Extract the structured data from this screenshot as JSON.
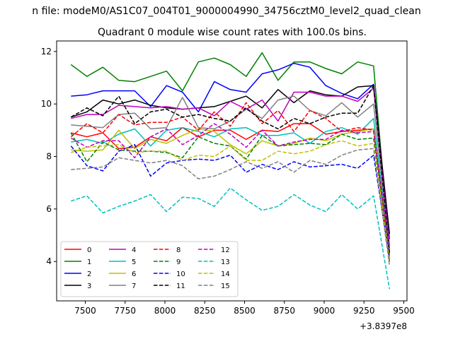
{
  "chart_data": {
    "type": "line",
    "suptitle": "n file: modeM0/AS1C07_004T01_9000004990_34756cztM0_level2_quad_clean",
    "title": "Quadrant 0 module wise count rates with 100.0s bins.",
    "xlabel": "",
    "ylabel": "",
    "x_offset_label": "+3.8397e8",
    "xlim": [
      7320,
      9520
    ],
    "ylim": [
      2.5,
      12.4
    ],
    "xticks": [
      7500,
      7750,
      8000,
      8250,
      8500,
      8750,
      9000,
      9250,
      9500
    ],
    "yticks": [
      4,
      6,
      8,
      10,
      12
    ],
    "grid": false,
    "legend": {
      "placement": "lower-left",
      "ncol": 4
    },
    "x": [
      7410,
      7510,
      7610,
      7710,
      7810,
      7910,
      8010,
      8110,
      8210,
      8310,
      8410,
      8510,
      8610,
      8710,
      8810,
      8910,
      9010,
      9110,
      9210,
      9310,
      9410
    ],
    "series": [
      {
        "name": "0",
        "color": "#ff0000",
        "style": "solid",
        "values": [
          8.9,
          8.75,
          8.9,
          8.3,
          8.35,
          8.75,
          8.6,
          9.1,
          8.75,
          9.0,
          9.0,
          8.65,
          9.0,
          8.95,
          9.25,
          9.25,
          8.85,
          8.95,
          9.0,
          9.05,
          4.2
        ]
      },
      {
        "name": "1",
        "color": "#008000",
        "style": "solid",
        "values": [
          11.5,
          11.05,
          11.4,
          10.9,
          10.85,
          11.05,
          11.25,
          10.5,
          11.6,
          11.75,
          11.5,
          11.05,
          11.95,
          10.9,
          11.6,
          11.6,
          11.35,
          11.15,
          11.6,
          11.45,
          4.35
        ]
      },
      {
        "name": "2",
        "color": "#0000ff",
        "style": "solid",
        "values": [
          10.3,
          10.35,
          10.5,
          10.5,
          10.5,
          9.9,
          10.7,
          10.45,
          9.7,
          10.85,
          10.55,
          10.45,
          11.15,
          11.3,
          11.55,
          11.4,
          10.7,
          10.4,
          10.2,
          10.75,
          4.85
        ]
      },
      {
        "name": "3",
        "color": "#000000",
        "style": "solid",
        "values": [
          9.5,
          9.7,
          10.15,
          10.0,
          10.15,
          9.95,
          9.85,
          9.8,
          9.85,
          9.9,
          10.1,
          10.3,
          9.85,
          10.55,
          10.05,
          10.5,
          10.35,
          10.3,
          10.65,
          10.7,
          5.05
        ]
      },
      {
        "name": "4",
        "color": "#bf00bf",
        "style": "solid",
        "values": [
          9.45,
          9.6,
          9.6,
          9.95,
          9.9,
          9.85,
          9.9,
          9.8,
          9.85,
          9.55,
          10.1,
          9.8,
          10.15,
          9.35,
          10.45,
          10.45,
          10.3,
          10.3,
          10.1,
          10.6,
          4.6
        ]
      },
      {
        "name": "5",
        "color": "#00bfbf",
        "style": "solid",
        "values": [
          8.55,
          8.65,
          8.5,
          8.85,
          9.05,
          8.4,
          9.0,
          9.1,
          8.95,
          8.75,
          9.05,
          9.1,
          8.8,
          8.8,
          8.9,
          8.5,
          8.95,
          9.1,
          8.85,
          9.45,
          4.3
        ]
      },
      {
        "name": "6",
        "color": "#bfbf00",
        "style": "solid",
        "values": [
          8.25,
          8.2,
          8.25,
          9.0,
          8.3,
          8.65,
          8.5,
          8.8,
          9.05,
          8.95,
          8.45,
          8.1,
          8.6,
          8.4,
          8.5,
          8.7,
          8.6,
          8.85,
          8.95,
          9.05,
          4.1
        ]
      },
      {
        "name": "7",
        "color": "#808080",
        "style": "solid",
        "values": [
          9.2,
          9.15,
          9.1,
          9.6,
          9.65,
          9.05,
          9.1,
          10.25,
          9.1,
          9.05,
          9.35,
          9.8,
          9.45,
          10.15,
          10.3,
          9.75,
          9.55,
          10.05,
          9.5,
          10.0,
          4.5
        ]
      },
      {
        "name": "8",
        "color": "#ff0000",
        "style": "dashed",
        "values": [
          8.75,
          9.25,
          8.9,
          9.6,
          9.2,
          9.3,
          9.3,
          9.5,
          9.0,
          9.7,
          9.15,
          10.05,
          9.25,
          9.75,
          8.95,
          9.75,
          9.45,
          8.95,
          9.1,
          9.0,
          4.0
        ]
      },
      {
        "name": "9",
        "color": "#008000",
        "style": "dashed",
        "values": [
          8.9,
          7.8,
          8.55,
          8.25,
          8.2,
          8.2,
          8.15,
          7.95,
          8.75,
          8.5,
          8.4,
          7.9,
          8.8,
          8.4,
          8.45,
          8.5,
          8.45,
          8.85,
          8.65,
          8.7,
          4.2
        ]
      },
      {
        "name": "10",
        "color": "#0000ff",
        "style": "dashed",
        "values": [
          8.4,
          7.65,
          7.45,
          8.2,
          8.45,
          7.25,
          7.75,
          7.85,
          7.9,
          7.85,
          8.05,
          7.4,
          7.7,
          7.5,
          7.8,
          7.6,
          7.65,
          7.7,
          7.55,
          8.05,
          4.1
        ]
      },
      {
        "name": "11",
        "color": "#000000",
        "style": "dashed",
        "values": [
          9.5,
          9.85,
          9.55,
          10.3,
          9.25,
          9.7,
          9.8,
          9.5,
          9.6,
          9.45,
          9.35,
          9.85,
          9.35,
          9.05,
          9.45,
          9.25,
          9.5,
          9.65,
          9.65,
          10.7,
          4.3
        ]
      },
      {
        "name": "12",
        "color": "#bf00bf",
        "style": "dashed",
        "values": [
          8.7,
          8.35,
          8.6,
          8.6,
          7.95,
          8.75,
          9.05,
          8.45,
          8.8,
          9.25,
          8.85,
          8.35,
          9.0,
          8.4,
          8.55,
          8.65,
          8.65,
          9.0,
          8.9,
          8.95,
          4.5
        ]
      },
      {
        "name": "13",
        "color": "#00bfbf",
        "style": "dashed",
        "values": [
          6.3,
          6.5,
          5.85,
          6.1,
          6.3,
          6.55,
          5.9,
          6.45,
          6.4,
          6.1,
          6.8,
          6.35,
          5.95,
          6.1,
          6.55,
          6.15,
          5.9,
          6.55,
          6.0,
          6.5,
          2.95
        ]
      },
      {
        "name": "14",
        "color": "#bfbf00",
        "style": "dashed",
        "values": [
          8.15,
          8.35,
          8.4,
          8.45,
          8.15,
          8.2,
          8.2,
          7.85,
          8.05,
          8.0,
          8.4,
          7.85,
          7.85,
          8.2,
          8.1,
          8.2,
          8.45,
          8.6,
          8.4,
          8.5,
          4.05
        ]
      },
      {
        "name": "15",
        "color": "#808080",
        "style": "dashed",
        "values": [
          7.5,
          7.55,
          7.6,
          7.95,
          7.85,
          7.75,
          7.85,
          7.65,
          7.15,
          7.25,
          7.5,
          7.8,
          7.55,
          7.8,
          7.4,
          7.85,
          7.7,
          8.05,
          8.25,
          8.3,
          3.85
        ]
      }
    ]
  }
}
